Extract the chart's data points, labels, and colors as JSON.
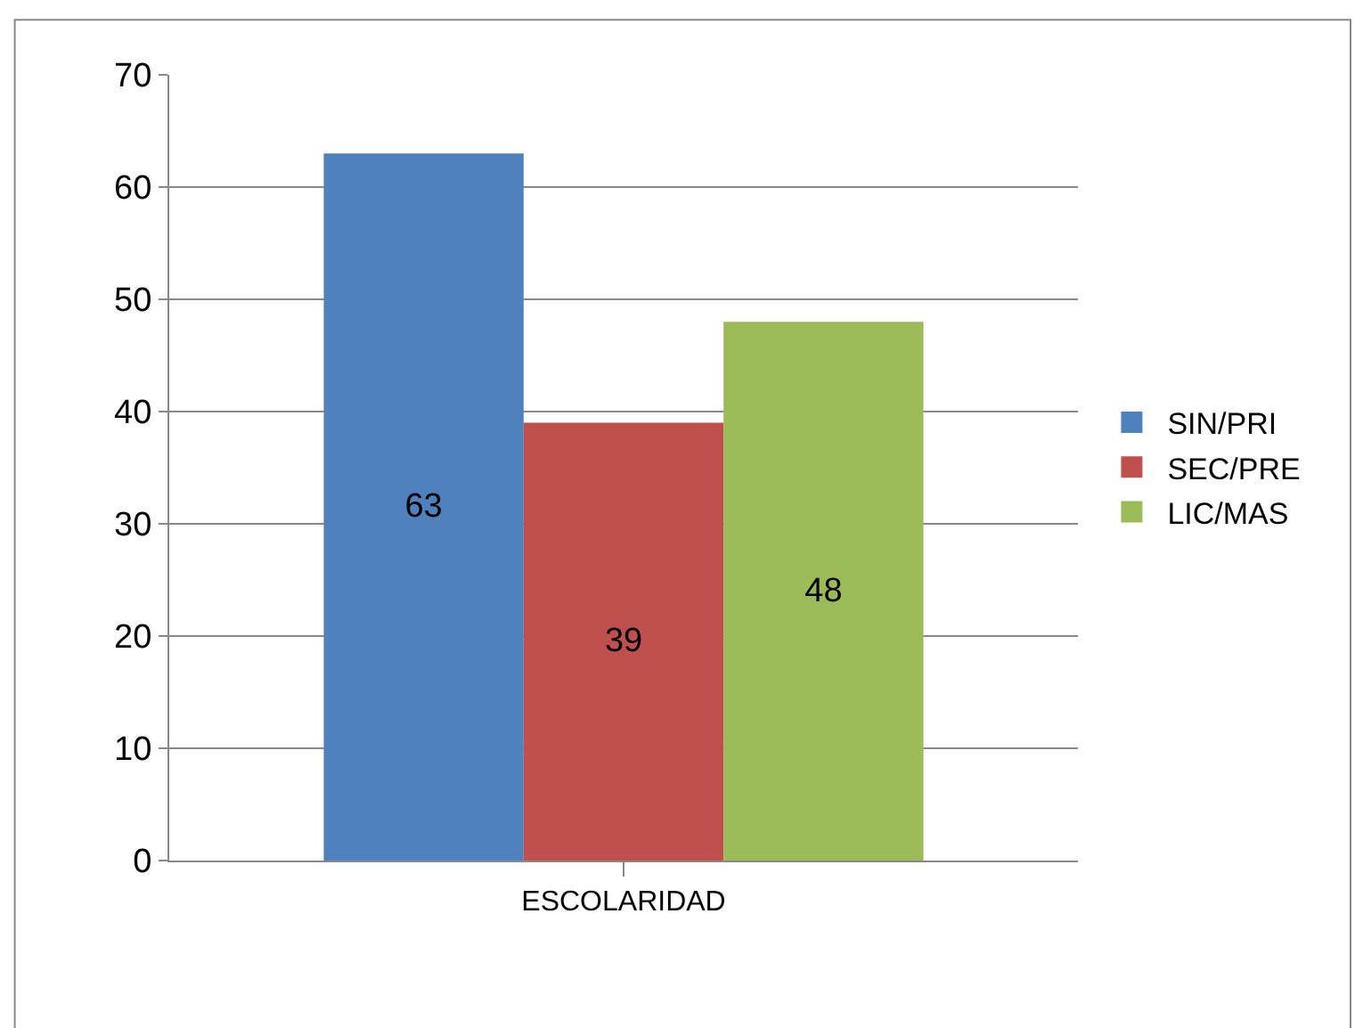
{
  "chart_data": {
    "type": "bar",
    "categories": [
      "ESCOLARIDAD"
    ],
    "series": [
      {
        "name": "SIN/PRI",
        "color": "#4f81bd",
        "values": [
          63
        ]
      },
      {
        "name": "SEC/PRE",
        "color": "#c0504d",
        "values": [
          39
        ]
      },
      {
        "name": "LIC/MAS",
        "color": "#9bbb59",
        "values": [
          48
        ]
      }
    ],
    "ylim": [
      0,
      70
    ],
    "yticks": [
      0,
      10,
      20,
      30,
      40,
      50,
      60,
      70
    ],
    "grid": "y",
    "legend": "right",
    "data_labels": true
  }
}
